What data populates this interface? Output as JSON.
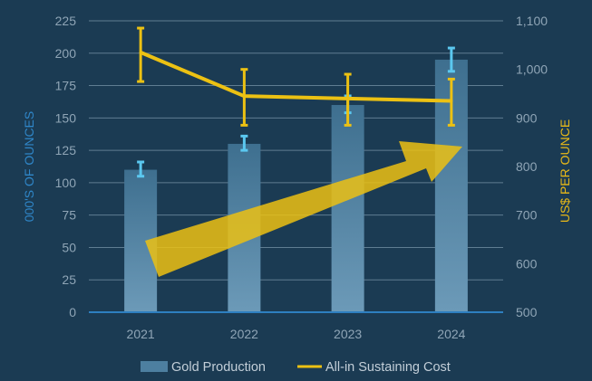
{
  "chart_data": {
    "type": "bar",
    "categories": [
      "2021",
      "2022",
      "2023",
      "2024"
    ],
    "series": [
      {
        "name": "Gold Production",
        "type": "bar",
        "axis": "left",
        "values": [
          110,
          130,
          160,
          195
        ],
        "error_low": [
          105,
          125,
          154,
          186
        ],
        "error_high": [
          116,
          136,
          167,
          204
        ],
        "color": "#4d7fa0",
        "error_color": "#5bc8f0"
      },
      {
        "name": "All-in Sustaining Cost",
        "type": "line",
        "axis": "right",
        "values": [
          1035,
          945,
          940,
          935
        ],
        "error_low": [
          975,
          885,
          885,
          885
        ],
        "error_high": [
          1085,
          1000,
          990,
          980
        ],
        "color": "#ecc113"
      }
    ],
    "y_left": {
      "label": "000'S OF OUNCES",
      "min": 0,
      "max": 225,
      "ticks": [
        "0",
        "25",
        "50",
        "75",
        "100",
        "125",
        "150",
        "175",
        "200",
        "225"
      ],
      "color": "#2f86c8"
    },
    "y_right": {
      "label": "US$ PER OUNCE",
      "min": 500,
      "max": 1100,
      "ticks": [
        "500",
        "600",
        "700",
        "800",
        "900",
        "1,000",
        "1,100"
      ],
      "color": "#e8b918"
    },
    "grid": true,
    "annotations": [
      {
        "type": "arrow",
        "meaning": "upward trend",
        "color": "#ecc113"
      }
    ],
    "legend_position": "bottom-center"
  }
}
